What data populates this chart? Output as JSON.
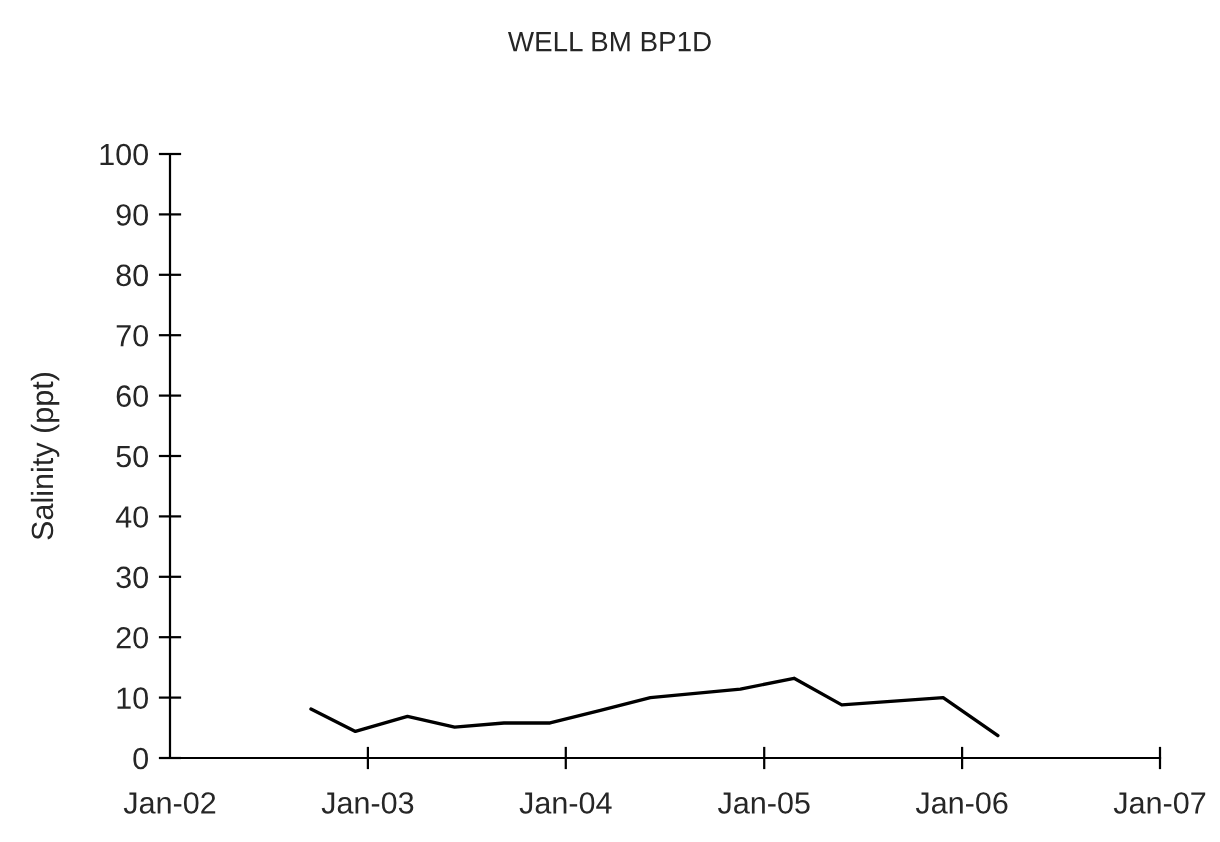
{
  "chart_data": {
    "type": "line",
    "title": "WELL BM BP1D",
    "ylabel": "Salinity (ppt)",
    "x": [
      "2002-09-18",
      "2002-12-09",
      "2003-03-15",
      "2003-06-10",
      "2003-09-09",
      "2003-12-03",
      "2004-03-05",
      "2004-06-05",
      "2004-11-18",
      "2005-02-25",
      "2005-05-24",
      "2005-11-27",
      "2006-03-08"
    ],
    "series": [
      {
        "color": "#000000",
        "values": [
          8.1,
          4.4,
          6.9,
          5.1,
          5.8,
          5.8,
          7.9,
          10,
          11.4,
          13.2,
          8.8,
          10,
          3.7
        ]
      }
    ],
    "xlim": [
      "2002-01-01",
      "2007-01-01"
    ],
    "xticks": [
      {
        "value": "2002-01-01",
        "label": "Jan-02"
      },
      {
        "value": "2003-01-01",
        "label": "Jan-03"
      },
      {
        "value": "2004-01-01",
        "label": "Jan-04"
      },
      {
        "value": "2005-01-01",
        "label": "Jan-05"
      },
      {
        "value": "2006-01-01",
        "label": "Jan-06"
      },
      {
        "value": "2007-01-01",
        "label": "Jan-07"
      }
    ],
    "ylim": [
      0,
      100
    ],
    "yticks": [
      0,
      10,
      20,
      30,
      40,
      50,
      60,
      70,
      80,
      90,
      100
    ],
    "grid": false,
    "legend": false,
    "marker": "none",
    "line_style": "solid"
  }
}
